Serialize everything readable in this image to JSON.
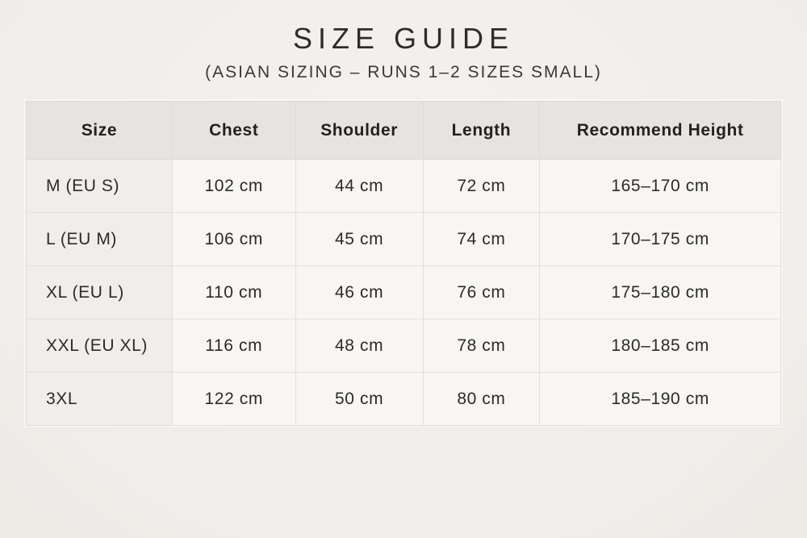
{
  "page": {
    "title": "SIZE GUIDE",
    "subtitle": "(ASIAN SIZING – RUNS 1–2 SIZES SMALL)"
  },
  "table": {
    "headers": [
      "Size",
      "Chest",
      "Shoulder",
      "Length",
      "Recommend Height"
    ],
    "rows": [
      [
        "M (EU S)",
        "102 cm",
        "44 cm",
        "72 cm",
        "165–170 cm"
      ],
      [
        "L (EU M)",
        "106 cm",
        "45 cm",
        "74 cm",
        "170–175 cm"
      ],
      [
        "XL (EU L)",
        "110 cm",
        "46 cm",
        "76 cm",
        "175–180 cm"
      ],
      [
        "XXL (EU XL)",
        "116 cm",
        "48 cm",
        "78 cm",
        "180–185 cm"
      ],
      [
        "3XL",
        "122 cm",
        "50 cm",
        "80 cm",
        "185–190 cm"
      ]
    ]
  },
  "colors": {
    "background": "#f1efeb",
    "header_bg": "#e6e4e1",
    "cell_bg": "#f7f6f3",
    "size_column_bg": "#efeeea",
    "border": "#dcdad6",
    "text": "#2c2b28"
  }
}
